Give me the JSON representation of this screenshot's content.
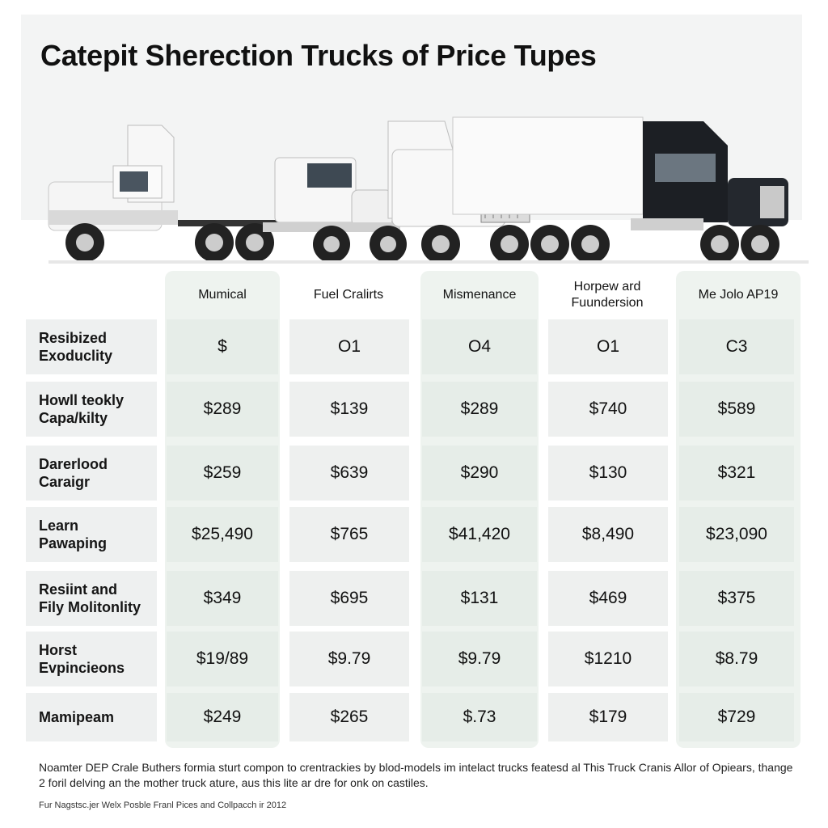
{
  "title": "Catepit Sherection Trucks of Price Tupes",
  "columns": [
    "Mumical",
    "Fuel Cralirts",
    "Mismenance",
    "Horpew ard\nFuundersion",
    "Me Jolo AP19"
  ],
  "rows": [
    {
      "label": "Resibized\nExoduclity",
      "values": [
        "$",
        "O1",
        "O4",
        "O1",
        "C3"
      ]
    },
    {
      "label": "Howll teokly\nCapa/kilty",
      "values": [
        "$289",
        "$139",
        "$289",
        "$740",
        "$589"
      ]
    },
    {
      "label": "Darerlood\nCaraigr",
      "values": [
        "$259",
        "$639",
        "$290",
        "$130",
        "$321"
      ]
    },
    {
      "label": "Learn\nPawaping",
      "values": [
        "$25,490",
        "$765",
        "$41,420",
        "$8,490",
        "$23,090"
      ]
    },
    {
      "label": "Resiint and\nFily Molitonlity",
      "values": [
        "$349",
        "$695",
        "$131",
        "$469",
        "$375"
      ]
    },
    {
      "label": "Horst\nEvpincieons",
      "values": [
        "$19/89",
        "$9.79",
        "$9.79",
        "$1210",
        "$8.79"
      ]
    },
    {
      "label": "Mamipeam",
      "values": [
        "$249",
        "$265",
        "$.73",
        "$179",
        "$729"
      ]
    }
  ],
  "footnote": "Noamter DEP Crale Buthers formia sturt compon to crentrackies by blod-models im intelact trucks featesd al This Truck Cranis Allor of Opiears, thange 2 foril delving an the mother truck ature, aus this lite ar dre for onk on castiles.",
  "credit": "Fur Nagstsc.jer Welx Posble Franl Pices and Collpacch ir 2012",
  "colors": {
    "band": "#eef3ef",
    "cell": "#eef0ef",
    "label_bg": "#eef0f0"
  }
}
